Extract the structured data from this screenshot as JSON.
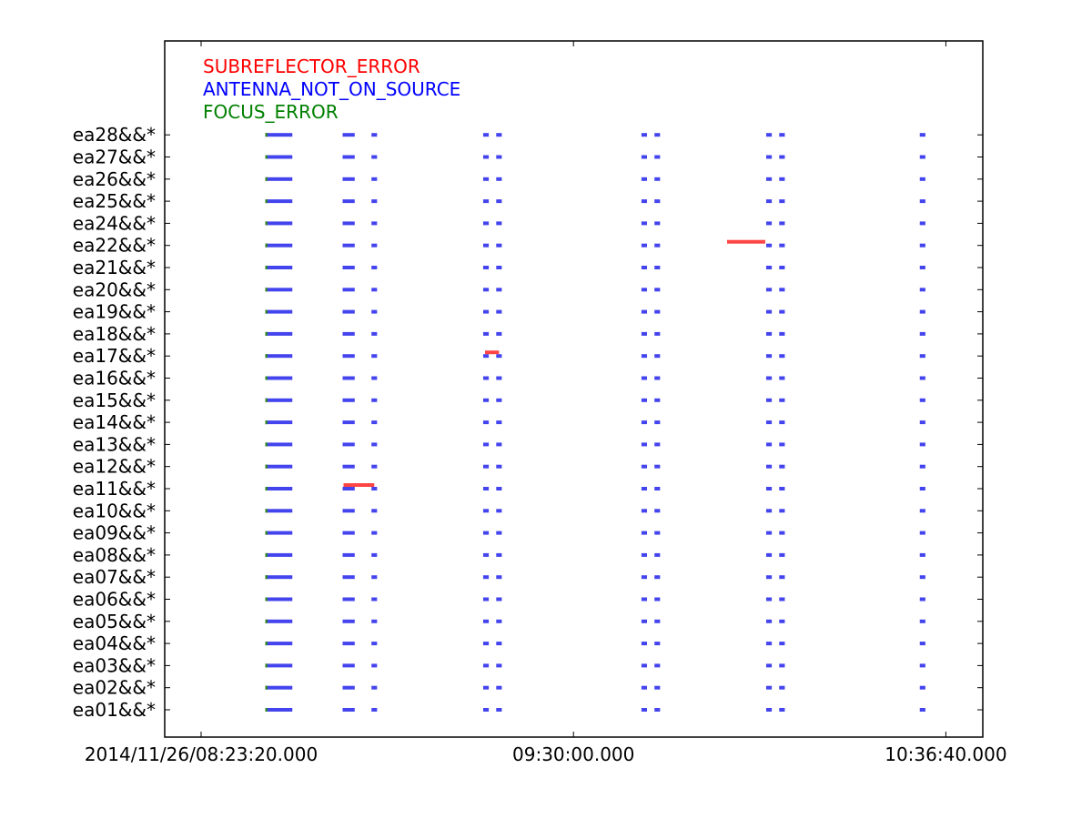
{
  "chart_data": {
    "type": "timeline",
    "title": "",
    "xlabel": "",
    "ylabel": "",
    "grid": false,
    "legend_placement": "top-left",
    "x_range_seconds": [
      -250,
      3450
    ],
    "x_ticks": [
      {
        "seconds": 0,
        "label": "2014/11/26/08:23:20.000"
      },
      {
        "seconds": 4000,
        "label": "09:30:00.000"
      },
      {
        "seconds": 8000,
        "label": "10:36:40.000"
      }
    ],
    "rows": [
      "ea01&&*",
      "ea02&&*",
      "ea03&&*",
      "ea04&&*",
      "ea05&&*",
      "ea06&&*",
      "ea07&&*",
      "ea08&&*",
      "ea09&&*",
      "ea10&&*",
      "ea11&&*",
      "ea12&&*",
      "ea13&&*",
      "ea14&&*",
      "ea15&&*",
      "ea16&&*",
      "ea17&&*",
      "ea18&&*",
      "ea19&&*",
      "ea20&&*",
      "ea21&&*",
      "ea22&&*",
      "ea24&&*",
      "ea25&&*",
      "ea26&&*",
      "ea27&&*",
      "ea28&&*"
    ],
    "series": [
      {
        "name": "SUBREFLECTOR_ERROR",
        "color": "#ff0000",
        "bar_color": "#ff4444"
      },
      {
        "name": "ANTENNA_NOT_ON_SOURCE",
        "color": "#0000ff",
        "bar_color": "#4444ee"
      },
      {
        "name": "FOCUS_ERROR",
        "color": "#008000",
        "bar_color": "#228b22"
      }
    ],
    "common_segments": [
      {
        "series": "ANTENNA_NOT_ON_SOURCE",
        "start": 690,
        "end": 980
      },
      {
        "series": "ANTENNA_NOT_ON_SOURCE",
        "start": 1520,
        "end": 1650
      },
      {
        "series": "ANTENNA_NOT_ON_SOURCE",
        "start": 1830,
        "end": 1890
      },
      {
        "series": "ANTENNA_NOT_ON_SOURCE",
        "start": 3030,
        "end": 3090
      },
      {
        "series": "ANTENNA_NOT_ON_SOURCE",
        "start": 3170,
        "end": 3230
      },
      {
        "series": "ANTENNA_NOT_ON_SOURCE",
        "start": 4730,
        "end": 4790
      },
      {
        "series": "ANTENNA_NOT_ON_SOURCE",
        "start": 4870,
        "end": 4930
      },
      {
        "series": "ANTENNA_NOT_ON_SOURCE",
        "start": 6070,
        "end": 6130
      },
      {
        "series": "ANTENNA_NOT_ON_SOURCE",
        "start": 6210,
        "end": 6270
      },
      {
        "series": "ANTENNA_NOT_ON_SOURCE",
        "start": 7720,
        "end": 7780
      },
      {
        "series": "SUBREFLECTOR_ERROR",
        "start": 690,
        "end": 710
      },
      {
        "series": "FOCUS_ERROR",
        "start": 690,
        "end": 712
      }
    ],
    "extra_segments": [
      {
        "row": "ea22&&*",
        "series": "SUBREFLECTOR_ERROR",
        "start": 5650,
        "end": 6060
      },
      {
        "row": "ea17&&*",
        "series": "SUBREFLECTOR_ERROR",
        "start": 3050,
        "end": 3200
      },
      {
        "row": "ea11&&*",
        "series": "SUBREFLECTOR_ERROR",
        "start": 1530,
        "end": 1860
      }
    ]
  }
}
